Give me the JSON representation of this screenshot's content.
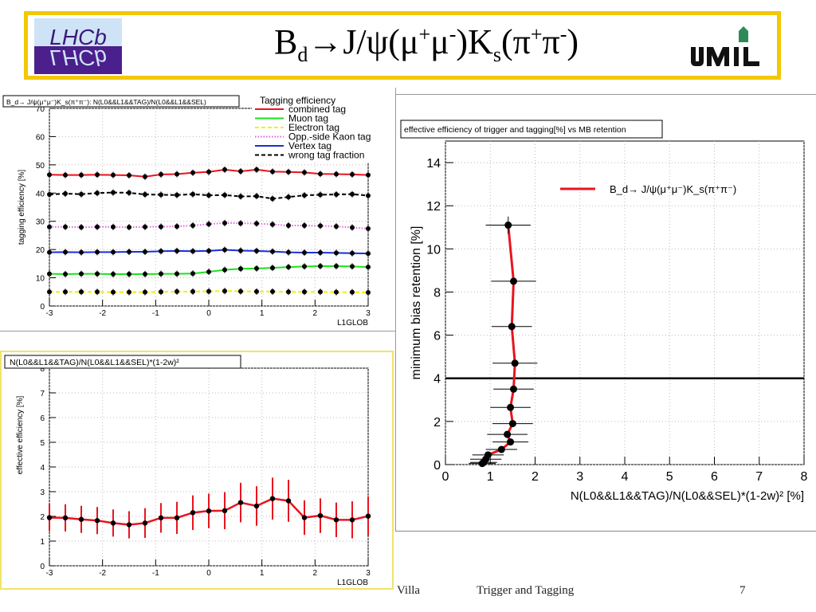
{
  "slide": {
    "title_main": "B",
    "title_sub": "d",
    "title_arrow": "→J/ψ(μ",
    "title_sup1": "+",
    "title_mid": "μ",
    "title_sup2": "-",
    "title_k": ")K",
    "title_sub2": "s",
    "title_pi": "(π",
    "title_sup3": "+",
    "title_pi2": "π",
    "title_sup4": "-",
    "title_end": ")",
    "logo_left": "LHCb",
    "logo_right": "UNIL",
    "footer_left": "Villa",
    "footer_center": "Trigger and Tagging",
    "footer_page": "7",
    "colors": {
      "frame": "#f2c800",
      "red": "#e8141e",
      "green": "#1fe01f",
      "yellow": "#f0f000",
      "magenta": "#e060e0",
      "blue": "#1a2fd6",
      "black": "#000000"
    }
  },
  "chart_data": [
    {
      "type": "line",
      "title": "B_d→ J/ψ(μ⁺μ⁻)K_s(π⁺π⁻): N(L0&&L1&&TAG)/N(L0&&L1&&SEL)",
      "ylabel": "tagging efficiency [%]",
      "xlabel": "L1GLOB",
      "xlim": [
        -3,
        3
      ],
      "ylim": [
        0,
        70
      ],
      "xticks": [
        "-3",
        "-2",
        "-1",
        "0",
        "1",
        "2",
        "3"
      ],
      "yticks": [
        "0",
        "10",
        "20",
        "30",
        "40",
        "50",
        "60",
        "70"
      ],
      "legend_title": "Tagging efficiency",
      "x": [
        -3,
        -2.7,
        -2.4,
        -2.1,
        -1.8,
        -1.5,
        -1.2,
        -0.9,
        -0.6,
        -0.3,
        0,
        0.3,
        0.6,
        0.9,
        1.2,
        1.5,
        1.8,
        2.1,
        2.4,
        2.7,
        3
      ],
      "series": [
        {
          "name": "combined tag",
          "color": "#e8141e",
          "style": "solid",
          "values": [
            46.5,
            46.4,
            46.4,
            46.5,
            46.4,
            46.3,
            45.8,
            46.6,
            46.7,
            47.2,
            47.5,
            48.3,
            47.7,
            48.3,
            47.6,
            47.5,
            47.3,
            46.8,
            46.7,
            46.6,
            46.4
          ]
        },
        {
          "name": "Muon tag",
          "color": "#1fe01f",
          "style": "solid",
          "values": [
            11.4,
            11.3,
            11.4,
            11.4,
            11.3,
            11.3,
            11.3,
            11.4,
            11.4,
            11.5,
            12.1,
            12.8,
            13.2,
            13.3,
            13.5,
            13.8,
            14.0,
            14.1,
            14.1,
            14.0,
            13.8
          ]
        },
        {
          "name": "Electron tag",
          "color": "#f0f000",
          "style": "dashed",
          "values": [
            5.0,
            5.0,
            5.0,
            5.0,
            4.9,
            4.9,
            4.9,
            5.0,
            5.1,
            5.1,
            5.2,
            5.3,
            5.2,
            5.1,
            5.1,
            5.0,
            5.0,
            5.0,
            4.9,
            4.9,
            4.8
          ]
        },
        {
          "name": "Opp.-side Kaon tag",
          "color": "#e060e0",
          "style": "dotted",
          "values": [
            28.0,
            28.0,
            27.9,
            28.0,
            28.0,
            27.9,
            28.0,
            28.1,
            28.2,
            28.5,
            29.0,
            29.4,
            29.3,
            29.2,
            28.9,
            28.5,
            28.5,
            28.4,
            28.2,
            27.8,
            27.4
          ]
        },
        {
          "name": "Vertex tag",
          "color": "#1a2fd6",
          "style": "solid",
          "values": [
            19.0,
            19.1,
            19.0,
            19.1,
            19.1,
            19.2,
            19.2,
            19.4,
            19.5,
            19.4,
            19.5,
            19.9,
            19.6,
            19.5,
            19.3,
            19.0,
            18.9,
            18.9,
            18.8,
            18.7,
            18.6
          ]
        },
        {
          "name": "wrong tag fraction",
          "color": "#000000",
          "style": "dashed",
          "values": [
            39.5,
            39.8,
            39.6,
            40.0,
            40.2,
            40.1,
            39.5,
            39.4,
            39.3,
            39.6,
            39.2,
            39.3,
            38.8,
            38.9,
            38.0,
            38.6,
            39.2,
            39.4,
            39.5,
            39.6,
            39.1
          ]
        }
      ]
    },
    {
      "type": "line",
      "title": "N(L0&&L1&&TAG)/N(L0&&L1&&SEL)*(1-2w)²",
      "ylabel": "effective efficiency [%]",
      "xlabel": "L1GLOB",
      "xlim": [
        -3,
        3
      ],
      "ylim": [
        0,
        8
      ],
      "xticks": [
        "-3",
        "-2",
        "-1",
        "0",
        "1",
        "2",
        "3"
      ],
      "yticks": [
        "0",
        "1",
        "2",
        "3",
        "4",
        "5",
        "6",
        "7",
        "8"
      ],
      "x": [
        -3,
        -2.7,
        -2.4,
        -2.1,
        -1.8,
        -1.5,
        -1.2,
        -0.9,
        -0.6,
        -0.3,
        0,
        0.3,
        0.6,
        0.9,
        1.2,
        1.5,
        1.8,
        2.1,
        2.4,
        2.7,
        3
      ],
      "series": [
        {
          "name": "",
          "color": "#e8141e",
          "values": [
            1.95,
            1.94,
            1.88,
            1.83,
            1.73,
            1.66,
            1.73,
            1.94,
            1.94,
            2.15,
            2.22,
            2.23,
            2.56,
            2.42,
            2.72,
            2.63,
            1.95,
            2.03,
            1.86,
            1.86,
            2.01
          ],
          "errors": [
            0.55,
            0.55,
            0.55,
            0.55,
            0.55,
            0.55,
            0.6,
            0.6,
            0.65,
            0.7,
            0.7,
            0.75,
            0.8,
            0.8,
            0.85,
            0.85,
            0.7,
            0.7,
            0.7,
            0.75,
            0.8
          ]
        }
      ]
    },
    {
      "type": "line",
      "title": "effective efficiency of trigger and tagging[%] vs MB retention",
      "xlabel": "N(L0&&L1&&TAG)/N(L0&&SEL)*(1-2w)² [%]",
      "ylabel": "minimum bias retention [%]",
      "xlim": [
        0,
        8
      ],
      "ylim": [
        0,
        15
      ],
      "xticks": [
        "0",
        "1",
        "2",
        "3",
        "4",
        "5",
        "6",
        "7",
        "8"
      ],
      "yticks": [
        "0",
        "2",
        "4",
        "6",
        "8",
        "10",
        "12",
        "14"
      ],
      "hline": 4,
      "legend": "B_d→ J/ψ(μ⁺μ⁻)K_s(π⁺π⁻)",
      "series": [
        {
          "name": "B_d→ J/ψ(μ⁺μ⁻)K_s(π⁺π⁻)",
          "color": "#e8141e",
          "points": [
            {
              "x": 1.4,
              "y": 11.1,
              "xerr": 0.5,
              "yerr": 0.4
            },
            {
              "x": 1.52,
              "y": 8.5,
              "xerr": 0.5,
              "yerr": 0.0
            },
            {
              "x": 1.48,
              "y": 6.4,
              "xerr": 0.45,
              "yerr": 0.0
            },
            {
              "x": 1.55,
              "y": 4.7,
              "xerr": 0.5,
              "yerr": 0.0
            },
            {
              "x": 1.52,
              "y": 3.5,
              "xerr": 0.45,
              "yerr": 0.0
            },
            {
              "x": 1.45,
              "y": 2.65,
              "xerr": 0.45,
              "yerr": 0.0
            },
            {
              "x": 1.5,
              "y": 1.9,
              "xerr": 0.45,
              "yerr": 0.0
            },
            {
              "x": 1.38,
              "y": 1.4,
              "xerr": 0.45,
              "yerr": 0.0
            },
            {
              "x": 1.45,
              "y": 1.05,
              "xerr": 0.4,
              "yerr": 0.0
            },
            {
              "x": 1.25,
              "y": 0.7,
              "xerr": 0.35,
              "yerr": 0.0
            },
            {
              "x": 0.95,
              "y": 0.45,
              "xerr": 0.35,
              "yerr": 0.0
            },
            {
              "x": 0.9,
              "y": 0.25,
              "xerr": 0.35,
              "yerr": 0.0
            },
            {
              "x": 0.85,
              "y": 0.1,
              "xerr": 0.3,
              "yerr": 0.0
            },
            {
              "x": 0.82,
              "y": 0.05,
              "xerr": 0.3,
              "yerr": 0.0
            }
          ]
        }
      ]
    }
  ]
}
